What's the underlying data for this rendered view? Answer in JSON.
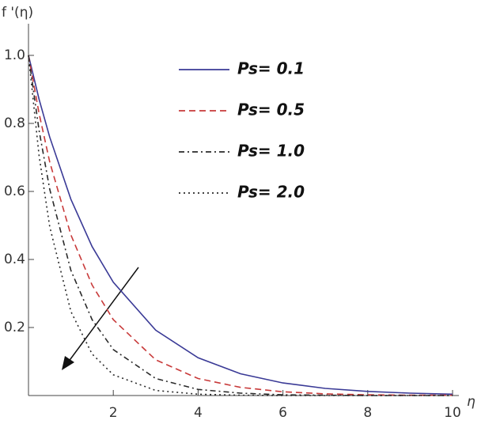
{
  "chart_data": {
    "type": "line",
    "y_label": "f '(η)",
    "x_label": "η",
    "x": [
      0,
      0.25,
      0.5,
      1,
      1.5,
      2,
      3,
      4,
      5,
      6,
      7,
      8,
      9,
      10
    ],
    "series": [
      {
        "name": "Ps= 0.1",
        "color": "#3a3a96",
        "style": "solid",
        "values": [
          1.0,
          0.871,
          0.76,
          0.577,
          0.438,
          0.333,
          0.192,
          0.111,
          0.064,
          0.037,
          0.021,
          0.012,
          0.007,
          0.004
        ]
      },
      {
        "name": "Ps= 0.5",
        "color": "#c83a3a",
        "style": "dashed",
        "values": [
          1.0,
          0.829,
          0.687,
          0.472,
          0.325,
          0.223,
          0.105,
          0.05,
          0.024,
          0.011,
          0.005,
          0.002,
          0.001,
          0.001
        ]
      },
      {
        "name": "Ps= 1.0",
        "color": "#2a2a2a",
        "style": "dashdot",
        "values": [
          1.0,
          0.779,
          0.607,
          0.368,
          0.223,
          0.135,
          0.05,
          0.018,
          0.007,
          0.002,
          0.001,
          0,
          0,
          0
        ]
      },
      {
        "name": "Ps= 2.0",
        "color": "#2a2a2a",
        "style": "dotted",
        "values": [
          1.0,
          0.705,
          0.497,
          0.247,
          0.122,
          0.061,
          0.015,
          0.004,
          0.001,
          0,
          0,
          0,
          0,
          0
        ]
      }
    ],
    "xlim": [
      0,
      10
    ],
    "ylim": [
      0,
      1.08
    ],
    "xticks": [
      2,
      4,
      6,
      8,
      10
    ],
    "yticks": [
      0.2,
      0.4,
      0.6,
      0.8,
      {
        "value": 1,
        "label": "1.0"
      }
    ],
    "grid": false
  }
}
